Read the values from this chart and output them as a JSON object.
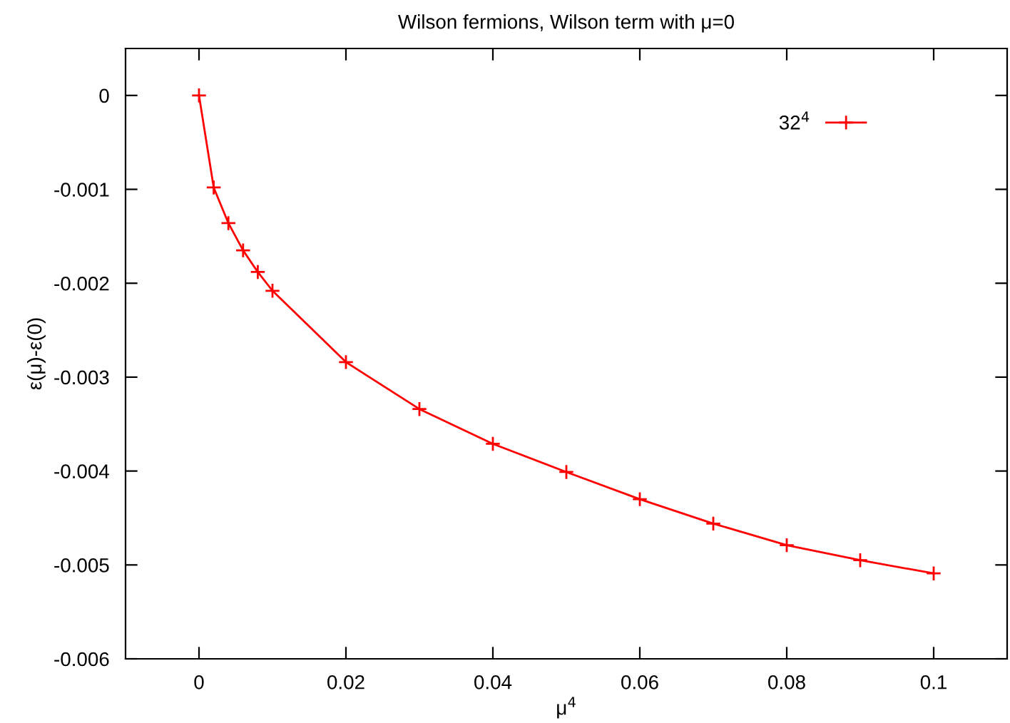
{
  "chart_data": {
    "type": "line",
    "title": "Wilson fermions, Wilson term with μ=0",
    "xlabel": "μ$^{4}$",
    "ylabel": "ε(μ)-ε(0)",
    "x": [
      0,
      0.002,
      0.004,
      0.006,
      0.008,
      0.01,
      0.02,
      0.03,
      0.04,
      0.05,
      0.06,
      0.07,
      0.08,
      0.09,
      0.1
    ],
    "series": [
      {
        "name": "32$^{4}$",
        "color": "#ff0000",
        "values": [
          0,
          -0.00098,
          -0.00136,
          -0.00165,
          -0.00188,
          -0.00208,
          -0.00284,
          -0.00334,
          -0.00371,
          -0.00401,
          -0.0043,
          -0.00456,
          -0.00479,
          -0.00495,
          -0.00509
        ]
      }
    ],
    "xlim": [
      -0.01,
      0.11
    ],
    "ylim": [
      -0.006,
      0.0005
    ],
    "xticks": [
      0,
      0.02,
      0.04,
      0.06,
      0.08,
      0.1
    ],
    "yticks": [
      -0.006,
      -0.005,
      -0.004,
      -0.003,
      -0.002,
      -0.001,
      0
    ],
    "marker": "cross",
    "line_style": "solid",
    "legend": "top right",
    "grid": false
  }
}
